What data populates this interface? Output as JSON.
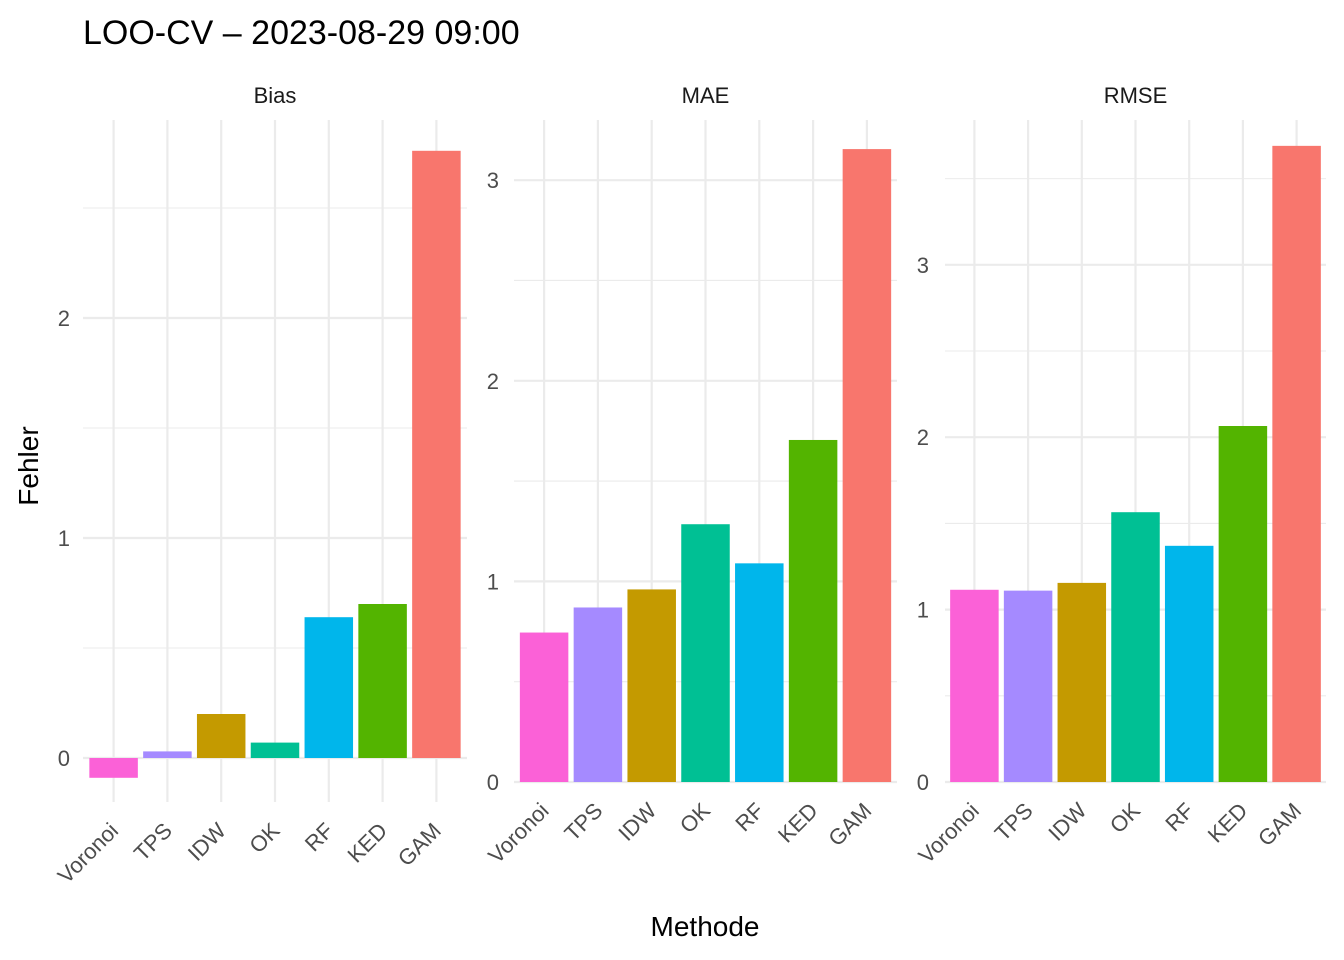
{
  "title": "LOO-CV – 2023-08-29 09:00",
  "xlabel": "Methode",
  "ylabel": "Fehler",
  "colors": {
    "Voronoi": "#FB61D7",
    "TPS": "#A58AFF",
    "IDW": "#C49A00",
    "OK": "#00C094",
    "RF": "#00B6EB",
    "KED": "#53B400",
    "GAM": "#F8766D"
  },
  "chart_data": [
    {
      "type": "bar",
      "panel": "Bias",
      "categories": [
        "Voronoi",
        "TPS",
        "IDW",
        "OK",
        "RF",
        "KED",
        "GAM"
      ],
      "values": [
        -0.09,
        0.03,
        0.2,
        0.07,
        0.64,
        0.7,
        2.76
      ],
      "ylim": [
        -0.2,
        2.9
      ],
      "yticks": [
        0,
        1,
        2
      ],
      "grid": true
    },
    {
      "type": "bar",
      "panel": "MAE",
      "categories": [
        "Voronoi",
        "TPS",
        "IDW",
        "OK",
        "RF",
        "KED",
        "GAM"
      ],
      "values": [
        0.745,
        0.87,
        0.96,
        1.285,
        1.09,
        1.705,
        3.155
      ],
      "ylim": [
        0,
        3.3
      ],
      "yticks": [
        0,
        1,
        2,
        3
      ],
      "grid": true
    },
    {
      "type": "bar",
      "panel": "RMSE",
      "categories": [
        "Voronoi",
        "TPS",
        "IDW",
        "OK",
        "RF",
        "KED",
        "GAM"
      ],
      "values": [
        1.115,
        1.11,
        1.155,
        1.565,
        1.37,
        2.065,
        3.69
      ],
      "ylim": [
        0,
        3.84
      ],
      "yticks": [
        0,
        1,
        2,
        3
      ],
      "grid": true
    }
  ]
}
